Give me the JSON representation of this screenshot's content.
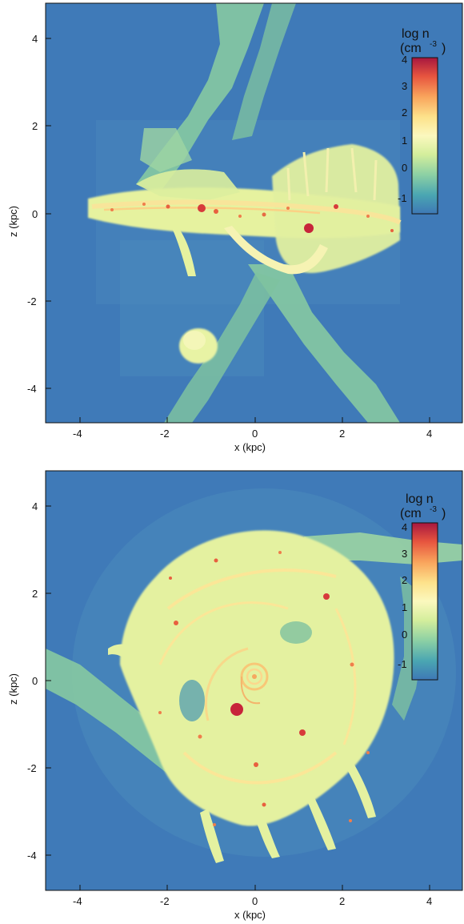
{
  "panels": [
    {
      "id": "edge-on",
      "xlabel": "x (kpc)",
      "ylabel": "z (kpc)",
      "x_ticks": [
        "-4",
        "-2",
        "0",
        "2",
        "4"
      ],
      "y_ticks": [
        "4",
        "2",
        "0",
        "-2",
        "-4"
      ],
      "colorbar": {
        "label_main": "log n",
        "label_unit": "(cm",
        "label_exp": "-3",
        "label_close": ")",
        "ticks": [
          "4",
          "3",
          "2",
          "1",
          "0",
          "-1"
        ]
      }
    },
    {
      "id": "face-on",
      "xlabel": "x (kpc)",
      "ylabel": "z (kpc)",
      "x_ticks": [
        "-4",
        "-2",
        "0",
        "2",
        "4"
      ],
      "y_ticks": [
        "4",
        "2",
        "0",
        "-2",
        "-4"
      ],
      "colorbar": {
        "label_main": "log n",
        "label_unit": "(cm",
        "label_exp": "-3",
        "label_close": ")",
        "ticks": [
          "4",
          "3",
          "2",
          "1",
          "0",
          "-1"
        ]
      }
    }
  ],
  "colors": {
    "background_low": "#3f7ab8",
    "filament": "#8fcfa3",
    "medium": "#e9f3a3",
    "dense": "#fde28b",
    "peak": "#c7243a"
  }
}
